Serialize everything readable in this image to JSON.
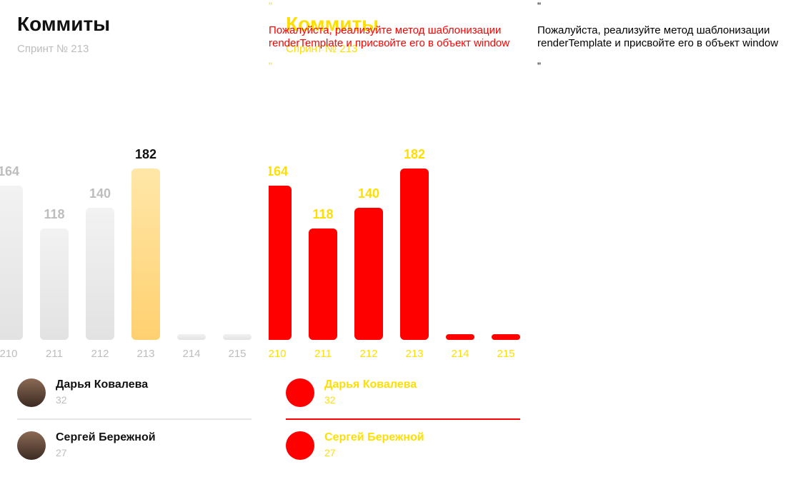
{
  "widget": {
    "title": "Коммиты",
    "subtitle": "Спринт № 213"
  },
  "chart_data": {
    "type": "bar",
    "categories": [
      "210",
      "211",
      "212",
      "213",
      "214",
      "215"
    ],
    "values": [
      164,
      118,
      140,
      182,
      0,
      0
    ],
    "active_category": "213"
  },
  "users": [
    {
      "name": "Дарья Ковалева",
      "value": "32"
    },
    {
      "name": "Сергей Бережной",
      "value": "27"
    }
  ],
  "error": {
    "quote": "\"",
    "line1": "Пожалуйста, реализуйте метод шаблонизации",
    "line2": "renderTemplate и присвойте его в объект window"
  },
  "colors": {
    "accent": "#ffd070",
    "overlay_red": "#ff0000",
    "overlay_yellow": "#ffdf00"
  }
}
